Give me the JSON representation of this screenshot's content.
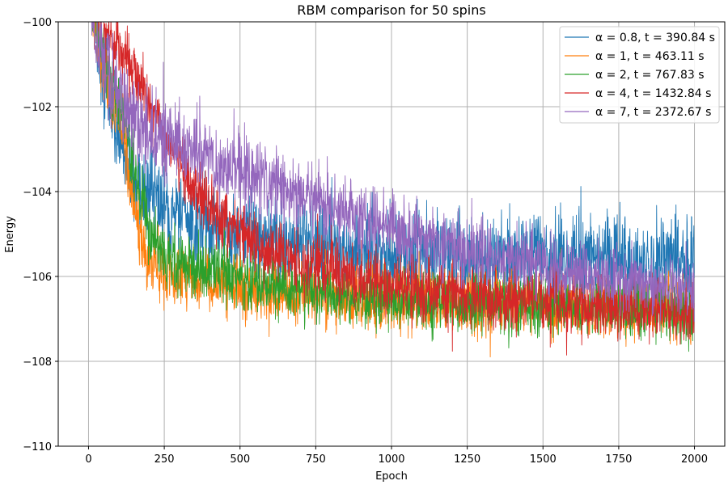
{
  "chart_data": {
    "type": "line",
    "title": "RBM comparison for 50 spins",
    "xlabel": "Epoch",
    "ylabel": "Energy",
    "xlim": [
      -100,
      2100
    ],
    "ylim": [
      -110,
      -100
    ],
    "x_ticks": [
      0,
      250,
      500,
      750,
      1000,
      1250,
      1500,
      1750,
      2000
    ],
    "y_ticks": [
      -110,
      -108,
      -106,
      -104,
      -102,
      -100
    ],
    "x_tick_labels": [
      "0",
      "250",
      "500",
      "750",
      "1000",
      "1250",
      "1500",
      "1750",
      "2000"
    ],
    "y_tick_labels": [
      "−110",
      "−108",
      "−106",
      "−104",
      "−102",
      "−100"
    ],
    "grid": true,
    "legend_position": "top-right",
    "series": [
      {
        "name": "α = 0.8, t = 390.84 s",
        "color": "#1f77b4",
        "trend": {
          "x": [
            0,
            25,
            50,
            75,
            100,
            125,
            150,
            175,
            200,
            250,
            300,
            400,
            500,
            600,
            750,
            1000,
            1250,
            1500,
            1750,
            2000
          ],
          "y": [
            -99,
            -100.5,
            -101.4,
            -102.1,
            -102.6,
            -103.1,
            -103.6,
            -103.9,
            -104.1,
            -104.4,
            -104.6,
            -104.9,
            -105.05,
            -105.15,
            -105.3,
            -105.5,
            -105.55,
            -105.6,
            -105.6,
            -105.65
          ]
        },
        "noise": [
          0.3,
          0.5,
          0.5,
          0.5,
          0.5,
          0.5
        ],
        "points": 2000
      },
      {
        "name": "α = 1, t = 463.11 s",
        "color": "#ff7f0e",
        "trend": {
          "x": [
            0,
            25,
            50,
            75,
            100,
            125,
            150,
            175,
            200,
            250,
            300,
            400,
            500,
            600,
            750,
            1000,
            1250,
            1500,
            1750,
            2000
          ],
          "y": [
            -99,
            -100.3,
            -101.1,
            -101.7,
            -102.2,
            -103.0,
            -104.4,
            -105.2,
            -105.6,
            -105.85,
            -106.0,
            -106.15,
            -106.3,
            -106.4,
            -106.5,
            -106.6,
            -106.65,
            -106.7,
            -106.75,
            -106.8
          ]
        },
        "noise": [
          0.3,
          0.45,
          0.4,
          0.35,
          0.35,
          0.35
        ],
        "points": 2000
      },
      {
        "name": "α = 2, t = 767.83 s",
        "color": "#2ca02c",
        "trend": {
          "x": [
            0,
            25,
            50,
            75,
            100,
            125,
            150,
            175,
            200,
            250,
            300,
            400,
            500,
            600,
            750,
            1000,
            1250,
            1500,
            1750,
            2000
          ],
          "y": [
            -99,
            -100.2,
            -100.8,
            -101.4,
            -102.0,
            -102.6,
            -103.4,
            -104.3,
            -104.9,
            -105.5,
            -105.75,
            -105.95,
            -106.1,
            -106.2,
            -106.4,
            -106.55,
            -106.65,
            -106.7,
            -106.75,
            -106.8
          ]
        },
        "noise": [
          0.3,
          0.4,
          0.35,
          0.35,
          0.35,
          0.35
        ],
        "points": 2000
      },
      {
        "name": "α = 4, t = 1432.84 s",
        "color": "#d62728",
        "trend": {
          "x": [
            0,
            25,
            50,
            75,
            100,
            125,
            150,
            175,
            200,
            250,
            300,
            350,
            400,
            500,
            600,
            750,
            1000,
            1250,
            1500,
            1750,
            2000
          ],
          "y": [
            -99,
            -99.6,
            -100.0,
            -100.4,
            -100.7,
            -100.9,
            -101.2,
            -101.6,
            -102.0,
            -102.7,
            -103.3,
            -103.9,
            -104.4,
            -105.0,
            -105.4,
            -105.8,
            -106.2,
            -106.45,
            -106.6,
            -106.75,
            -106.85
          ]
        },
        "noise": [
          0.3,
          0.35,
          0.35,
          0.35,
          0.35,
          0.35
        ],
        "points": 2000
      },
      {
        "name": "α = 7, t = 2372.67 s",
        "color": "#9467bd",
        "trend": {
          "x": [
            0,
            25,
            50,
            75,
            100,
            125,
            150,
            175,
            200,
            250,
            300,
            400,
            500,
            600,
            750,
            1000,
            1250,
            1500,
            1750,
            2000
          ],
          "y": [
            -99,
            -100.4,
            -100.9,
            -101.4,
            -101.8,
            -102.1,
            -102.3,
            -102.5,
            -102.6,
            -102.8,
            -102.95,
            -103.25,
            -103.55,
            -103.85,
            -104.25,
            -104.9,
            -105.4,
            -105.75,
            -106.05,
            -106.3
          ]
        },
        "noise": [
          0.3,
          0.5,
          0.5,
          0.45,
          0.4,
          0.35
        ],
        "points": 2000
      }
    ]
  }
}
